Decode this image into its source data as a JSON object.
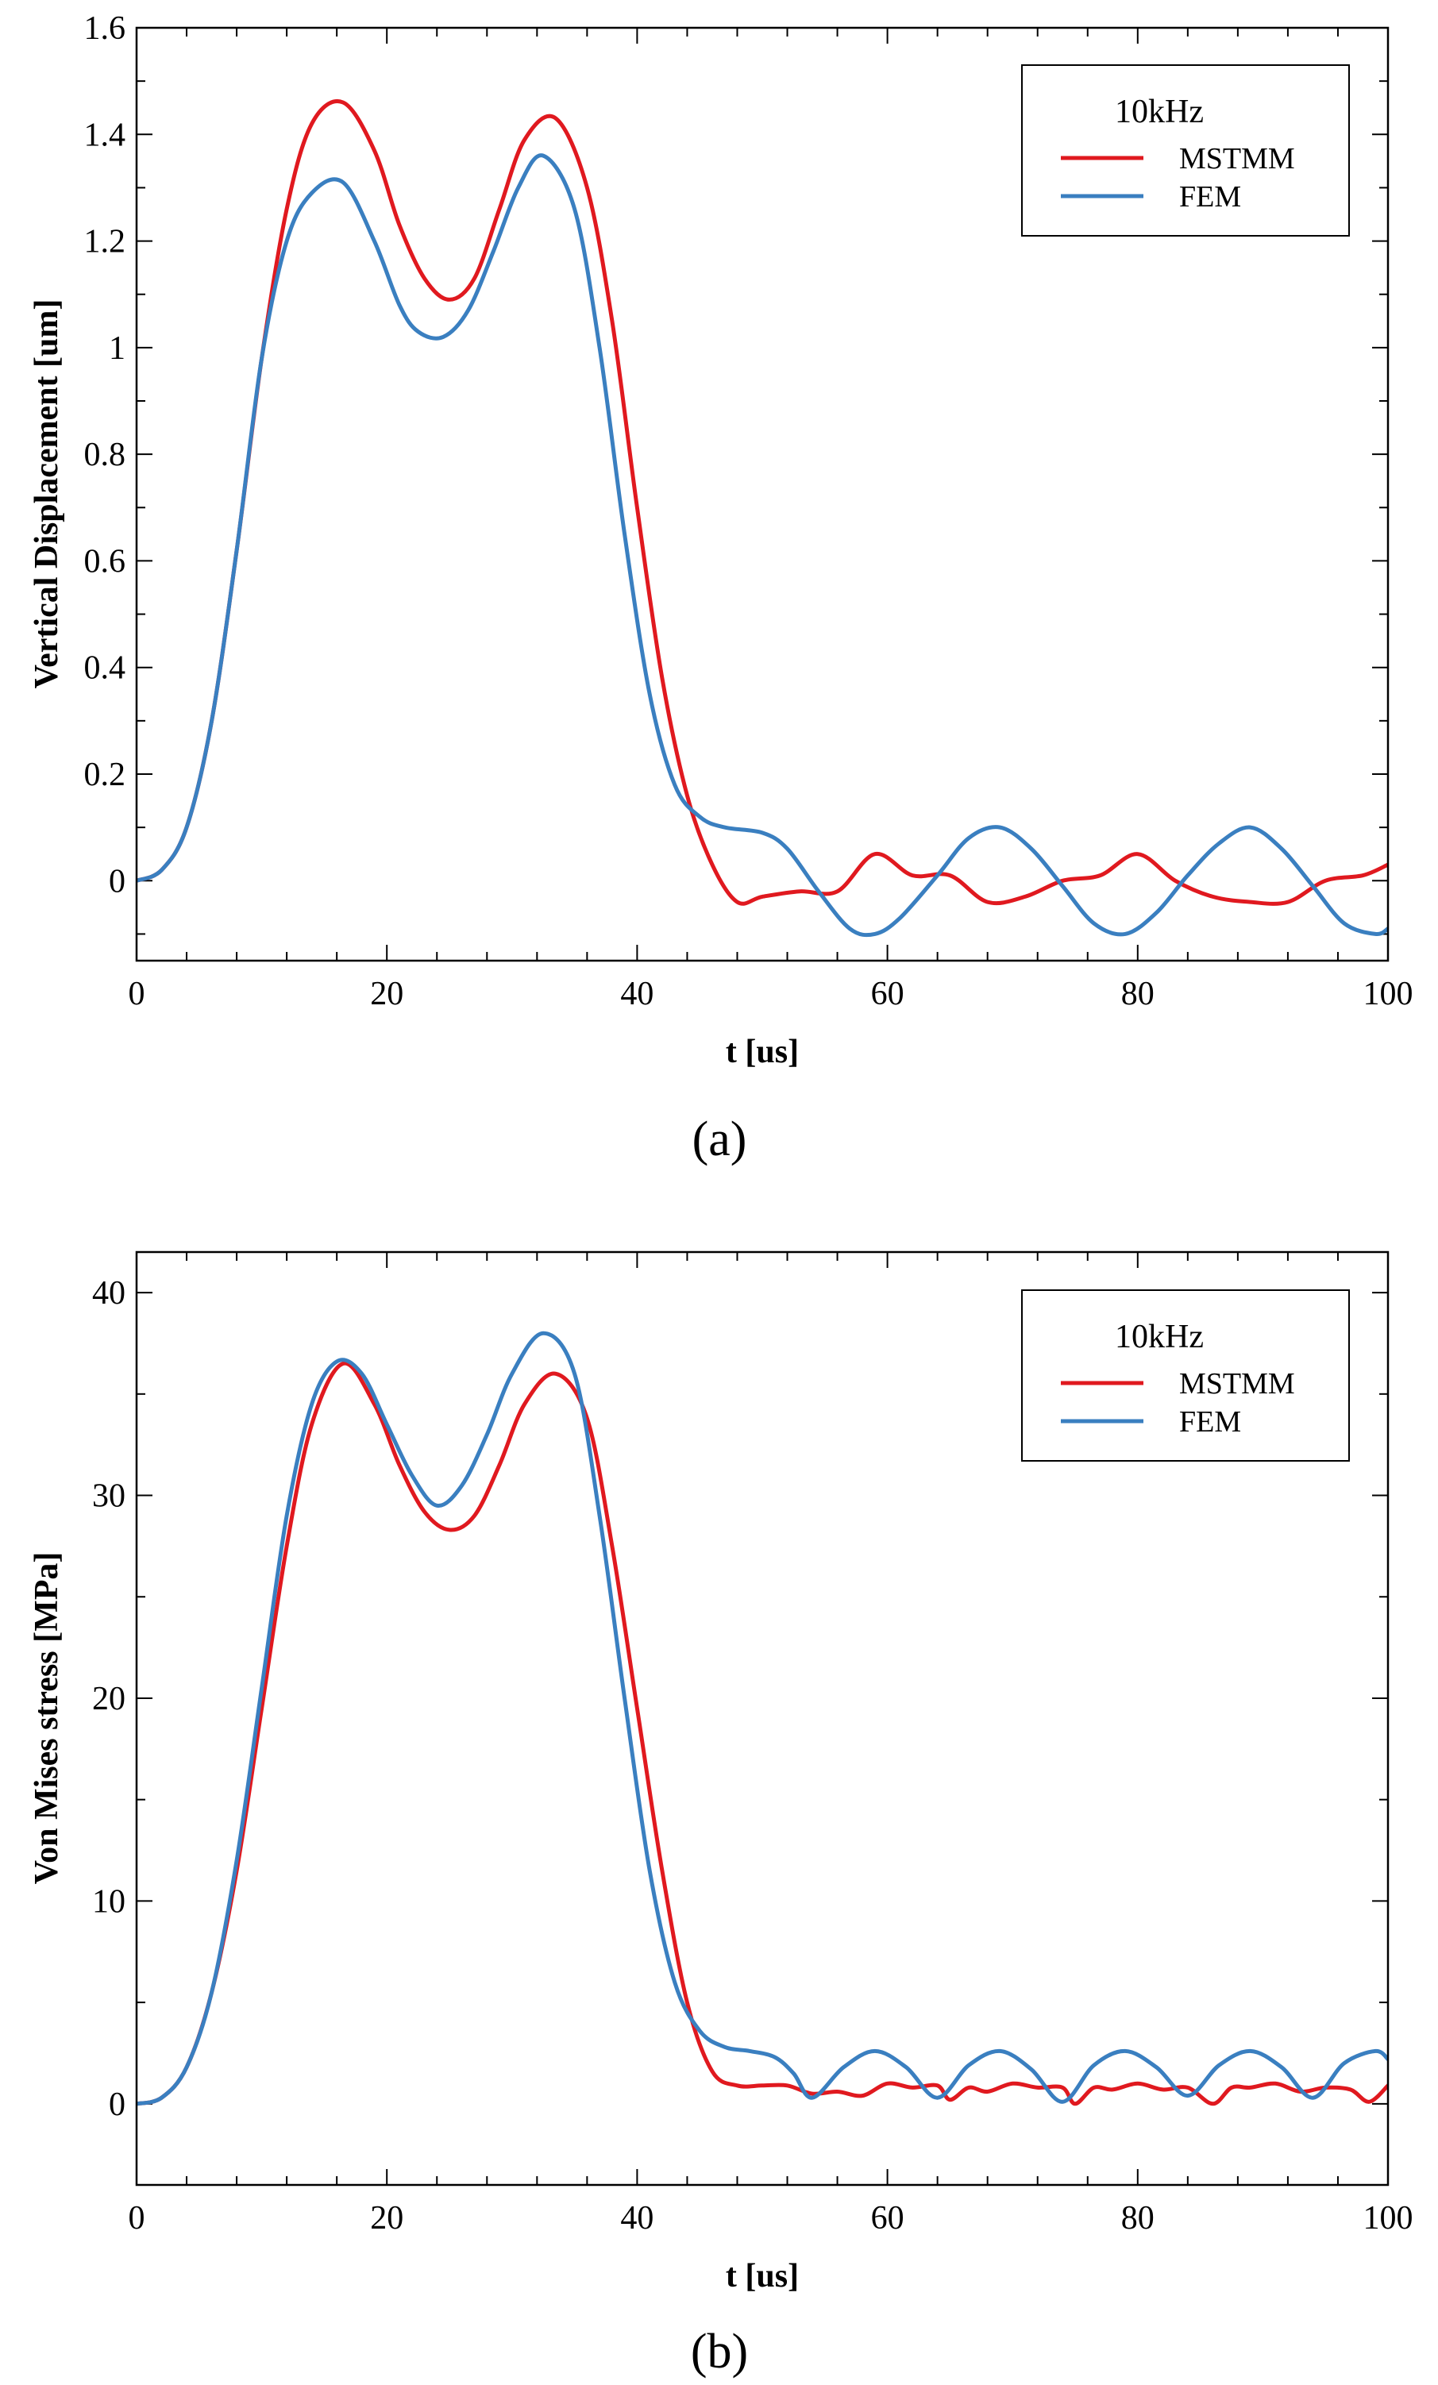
{
  "chart_data": [
    {
      "type": "line",
      "panel_label": "(a)",
      "xlabel": "t [us]",
      "ylabel": "Vertical Displacement [um]",
      "xlim": [
        0,
        100
      ],
      "ylim": [
        -0.15,
        1.6
      ],
      "xticks": [
        0,
        20,
        40,
        60,
        80,
        100
      ],
      "yticks": [
        0,
        0.2,
        0.4,
        0.6,
        0.8,
        1,
        1.2,
        1.4,
        1.6
      ],
      "ytick_labels": [
        "0",
        "0.2",
        "0.4",
        "0.6",
        "0.8",
        "1",
        "1.2",
        "1.4",
        "1.6"
      ],
      "legend": {
        "title": "10kHz",
        "position": "top-right"
      },
      "grid": false,
      "series": [
        {
          "name": "MSTMM",
          "color": "#e0191f",
          "x": [
            0,
            2,
            4,
            6,
            8,
            10,
            12,
            14,
            16.5,
            19,
            21,
            23,
            25,
            27,
            29,
            31,
            33.5,
            36,
            38,
            40,
            42,
            44,
            46,
            48,
            50,
            53,
            56,
            59,
            62,
            65,
            68,
            71,
            74,
            77,
            80,
            83,
            86,
            89,
            92,
            95,
            98,
            100
          ],
          "y": [
            0,
            0.02,
            0.1,
            0.3,
            0.62,
            0.98,
            1.26,
            1.42,
            1.46,
            1.37,
            1.23,
            1.13,
            1.09,
            1.13,
            1.26,
            1.39,
            1.43,
            1.3,
            1.05,
            0.7,
            0.38,
            0.16,
            0.03,
            -0.04,
            -0.03,
            -0.02,
            -0.02,
            0.05,
            0.01,
            0.01,
            -0.04,
            -0.03,
            0.0,
            0.01,
            0.05,
            0.0,
            -0.03,
            -0.04,
            -0.04,
            0.0,
            0.01,
            0.03
          ]
        },
        {
          "name": "FEM",
          "color": "#3a7fc0",
          "x": [
            0,
            2,
            4,
            6,
            8,
            10,
            12,
            14,
            16.5,
            19,
            21,
            22.5,
            24.5,
            26.5,
            28.5,
            30.5,
            32.5,
            35,
            37,
            39,
            41,
            43,
            45,
            47,
            50,
            52,
            54.5,
            57,
            59,
            61,
            64,
            66.5,
            69,
            71.5,
            74,
            76.5,
            79,
            81.5,
            84,
            86.5,
            89,
            91.5,
            94,
            96.5,
            99,
            100
          ],
          "y": [
            0,
            0.02,
            0.1,
            0.3,
            0.62,
            0.98,
            1.2,
            1.29,
            1.31,
            1.2,
            1.08,
            1.03,
            1.02,
            1.07,
            1.18,
            1.3,
            1.36,
            1.26,
            1.0,
            0.65,
            0.35,
            0.18,
            0.12,
            0.1,
            0.09,
            0.06,
            -0.02,
            -0.09,
            -0.1,
            -0.07,
            0.01,
            0.08,
            0.1,
            0.06,
            -0.01,
            -0.08,
            -0.1,
            -0.06,
            0.01,
            0.07,
            0.1,
            0.06,
            -0.01,
            -0.08,
            -0.1,
            -0.09
          ]
        }
      ]
    },
    {
      "type": "line",
      "panel_label": "(b)",
      "xlabel": "t [us]",
      "ylabel": "Von Mises stress [MPa]",
      "xlim": [
        0,
        100
      ],
      "ylim": [
        -4,
        42
      ],
      "xticks": [
        0,
        20,
        40,
        60,
        80,
        100
      ],
      "yticks": [
        0,
        10,
        20,
        30,
        40
      ],
      "ytick_labels": [
        "0",
        "10",
        "20",
        "30",
        "40"
      ],
      "legend": {
        "title": "10kHz",
        "position": "top-right"
      },
      "grid": false,
      "series": [
        {
          "name": "MSTMM",
          "color": "#e0191f",
          "x": [
            0,
            2,
            4,
            6,
            8,
            10,
            12,
            14,
            16.5,
            19,
            21,
            23,
            25,
            27,
            29,
            31,
            33.5,
            36,
            38,
            40,
            42,
            44,
            46,
            48,
            50,
            52,
            54,
            56,
            58,
            60,
            62,
            64,
            65,
            66.5,
            68,
            70,
            72,
            74,
            75,
            76.5,
            78,
            80,
            82,
            84,
            86,
            87.5,
            89,
            91,
            93,
            95,
            97,
            98.5,
            100
          ],
          "y": [
            0,
            0.3,
            1.8,
            5.5,
            11.5,
            19.5,
            27.5,
            33.5,
            36.5,
            34.5,
            31.5,
            29.2,
            28.3,
            29.0,
            31.5,
            34.5,
            36.0,
            33.8,
            27.5,
            19.5,
            11.5,
            5.0,
            1.6,
            0.9,
            0.9,
            0.9,
            0.5,
            0.6,
            0.4,
            1.0,
            0.8,
            0.9,
            0.2,
            0.8,
            0.6,
            1.0,
            0.8,
            0.8,
            0.0,
            0.8,
            0.7,
            1.0,
            0.7,
            0.8,
            0.0,
            0.8,
            0.8,
            1.0,
            0.6,
            0.8,
            0.7,
            0.1,
            0.9
          ]
        },
        {
          "name": "FEM",
          "color": "#3a7fc0",
          "x": [
            0,
            2,
            4,
            6,
            8,
            10,
            12,
            14,
            16,
            18,
            20,
            22,
            24,
            26,
            28,
            30,
            32.5,
            35,
            37,
            39,
            41,
            43,
            45,
            47,
            49,
            51,
            52.5,
            54,
            56.5,
            59,
            61.5,
            64,
            66.5,
            69,
            71.5,
            74,
            76.5,
            79,
            81.5,
            84,
            86.5,
            89,
            91.5,
            94,
            96.5,
            99,
            100
          ],
          "y": [
            0,
            0.3,
            1.8,
            5.5,
            12.0,
            20.5,
            29.0,
            34.5,
            36.6,
            36.0,
            33.5,
            31.0,
            29.5,
            30.5,
            33.0,
            36.0,
            38.0,
            36.0,
            29.0,
            20.0,
            11.5,
            6.0,
            3.6,
            2.8,
            2.6,
            2.3,
            1.5,
            0.3,
            1.8,
            2.6,
            1.8,
            0.3,
            1.9,
            2.6,
            1.7,
            0.1,
            1.9,
            2.6,
            1.8,
            0.4,
            1.9,
            2.6,
            1.8,
            0.3,
            2.0,
            2.6,
            2.2
          ]
        }
      ]
    }
  ]
}
